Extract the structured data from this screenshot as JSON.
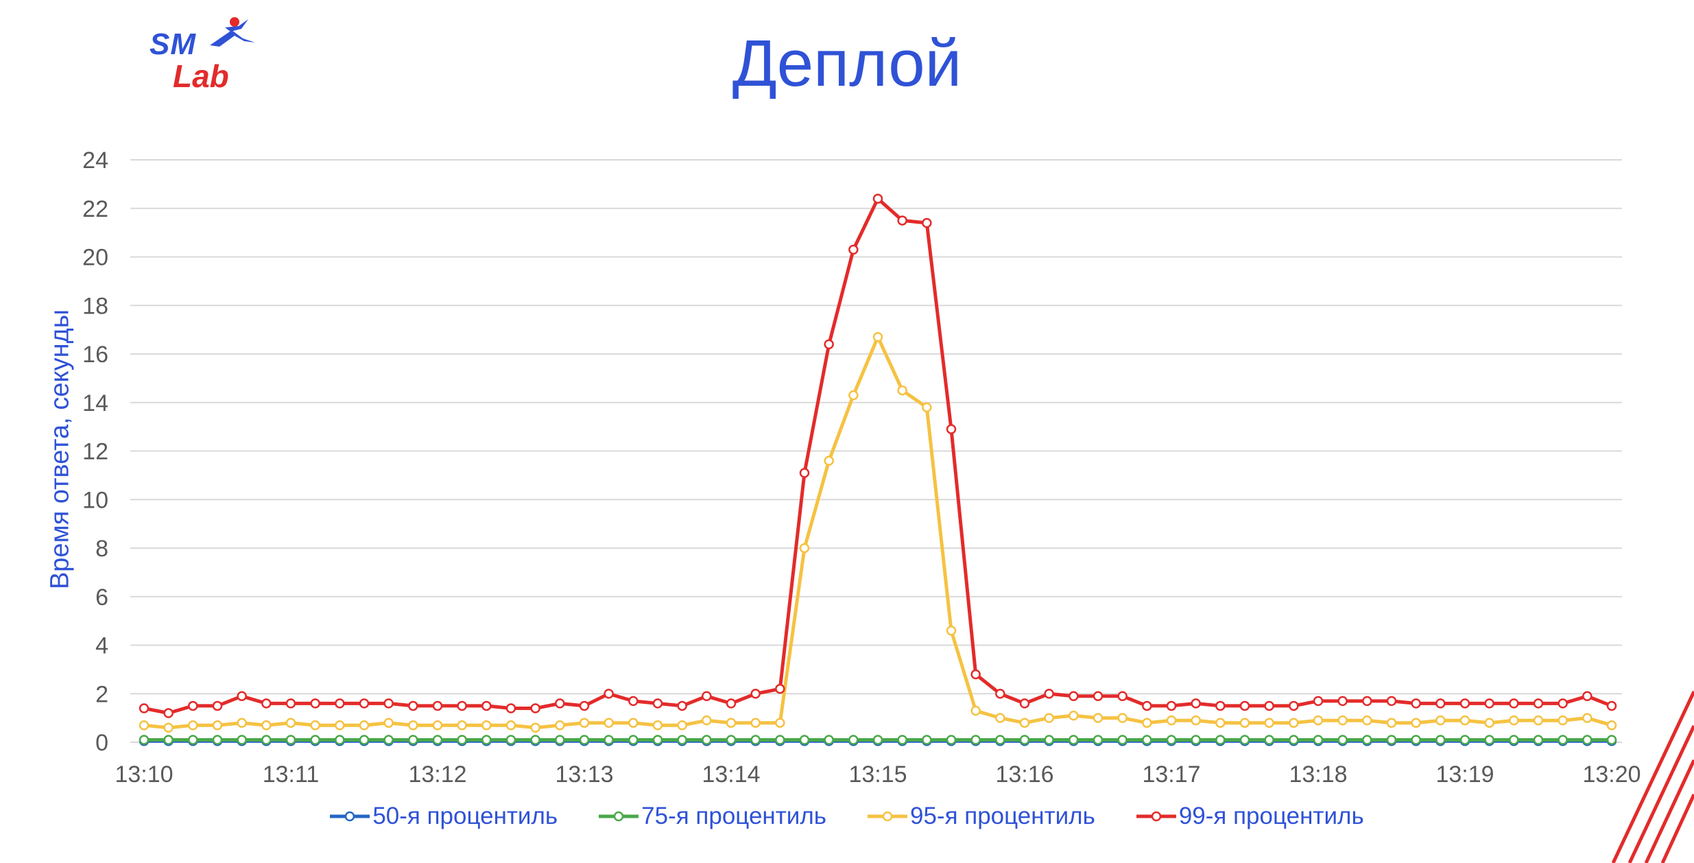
{
  "header": {
    "logo_sm": "SM",
    "logo_lab": "Lab",
    "title": "Деплой"
  },
  "colors": {
    "accent": "#2f52d6",
    "brand_red": "#e32b2b",
    "grid": "#d9d9d9",
    "tick_text": "#595959"
  },
  "chart_data": {
    "type": "line",
    "title": "Деплой",
    "xlabel": "",
    "ylabel": "Время ответа, секунды",
    "ylim": [
      0,
      24
    ],
    "yticks": [
      0,
      2,
      4,
      6,
      8,
      10,
      12,
      14,
      16,
      18,
      20,
      22,
      24
    ],
    "x_tick_labels": [
      "13:10",
      "13:11",
      "13:12",
      "13:13",
      "13:14",
      "13:15",
      "13:16",
      "13:17",
      "13:18",
      "13:19",
      "13:20"
    ],
    "x_minutes_range": [
      0,
      10
    ],
    "sample_interval_seconds": 10,
    "grid": true,
    "legend_position": "bottom",
    "series": [
      {
        "name": "50-я процентиль",
        "color": "#2566c4",
        "values": [
          0.05,
          0.05,
          0.05,
          0.05,
          0.05,
          0.05,
          0.05,
          0.05,
          0.05,
          0.05,
          0.05,
          0.05,
          0.05,
          0.05,
          0.05,
          0.05,
          0.05,
          0.05,
          0.05,
          0.05,
          0.05,
          0.05,
          0.05,
          0.05,
          0.05,
          0.05,
          0.05,
          0.05,
          0.05,
          0.05,
          0.05,
          0.05,
          0.05,
          0.05,
          0.05,
          0.05,
          0.05,
          0.05,
          0.05,
          0.05,
          0.05,
          0.05,
          0.05,
          0.05,
          0.05,
          0.05,
          0.05,
          0.05,
          0.05,
          0.05,
          0.05,
          0.05,
          0.05,
          0.05,
          0.05,
          0.05,
          0.05,
          0.05,
          0.05,
          0.05,
          0.05
        ]
      },
      {
        "name": "75-я процентиль",
        "color": "#4aa84a",
        "values": [
          0.1,
          0.1,
          0.1,
          0.1,
          0.1,
          0.1,
          0.1,
          0.1,
          0.1,
          0.1,
          0.1,
          0.1,
          0.1,
          0.1,
          0.1,
          0.1,
          0.1,
          0.1,
          0.1,
          0.1,
          0.1,
          0.1,
          0.1,
          0.1,
          0.1,
          0.1,
          0.1,
          0.1,
          0.1,
          0.1,
          0.1,
          0.1,
          0.1,
          0.1,
          0.1,
          0.1,
          0.1,
          0.1,
          0.1,
          0.1,
          0.1,
          0.1,
          0.1,
          0.1,
          0.1,
          0.1,
          0.1,
          0.1,
          0.1,
          0.1,
          0.1,
          0.1,
          0.1,
          0.1,
          0.1,
          0.1,
          0.1,
          0.1,
          0.1,
          0.1,
          0.1
        ]
      },
      {
        "name": "95-я процентиль",
        "color": "#f5c242",
        "values": [
          0.7,
          0.6,
          0.7,
          0.7,
          0.8,
          0.7,
          0.8,
          0.7,
          0.7,
          0.7,
          0.8,
          0.7,
          0.7,
          0.7,
          0.7,
          0.7,
          0.6,
          0.7,
          0.8,
          0.8,
          0.8,
          0.7,
          0.7,
          0.9,
          0.8,
          0.8,
          0.8,
          8.0,
          11.6,
          14.3,
          16.7,
          14.5,
          13.8,
          4.6,
          1.3,
          1.0,
          0.8,
          1.0,
          1.1,
          1.0,
          1.0,
          0.8,
          0.9,
          0.9,
          0.8,
          0.8,
          0.8,
          0.8,
          0.9,
          0.9,
          0.9,
          0.8,
          0.8,
          0.9,
          0.9,
          0.8,
          0.9,
          0.9,
          0.9,
          1.0,
          0.7
        ]
      },
      {
        "name": "99-я процентиль",
        "color": "#e32b2b",
        "values": [
          1.4,
          1.2,
          1.5,
          1.5,
          1.9,
          1.6,
          1.6,
          1.6,
          1.6,
          1.6,
          1.6,
          1.5,
          1.5,
          1.5,
          1.5,
          1.4,
          1.4,
          1.6,
          1.5,
          2.0,
          1.7,
          1.6,
          1.5,
          1.9,
          1.6,
          2.0,
          2.2,
          11.1,
          16.4,
          20.3,
          22.4,
          21.5,
          21.4,
          12.9,
          2.8,
          2.0,
          1.6,
          2.0,
          1.9,
          1.9,
          1.9,
          1.5,
          1.5,
          1.6,
          1.5,
          1.5,
          1.5,
          1.5,
          1.7,
          1.7,
          1.7,
          1.7,
          1.6,
          1.6,
          1.6,
          1.6,
          1.6,
          1.6,
          1.6,
          1.9,
          1.5
        ]
      }
    ]
  }
}
